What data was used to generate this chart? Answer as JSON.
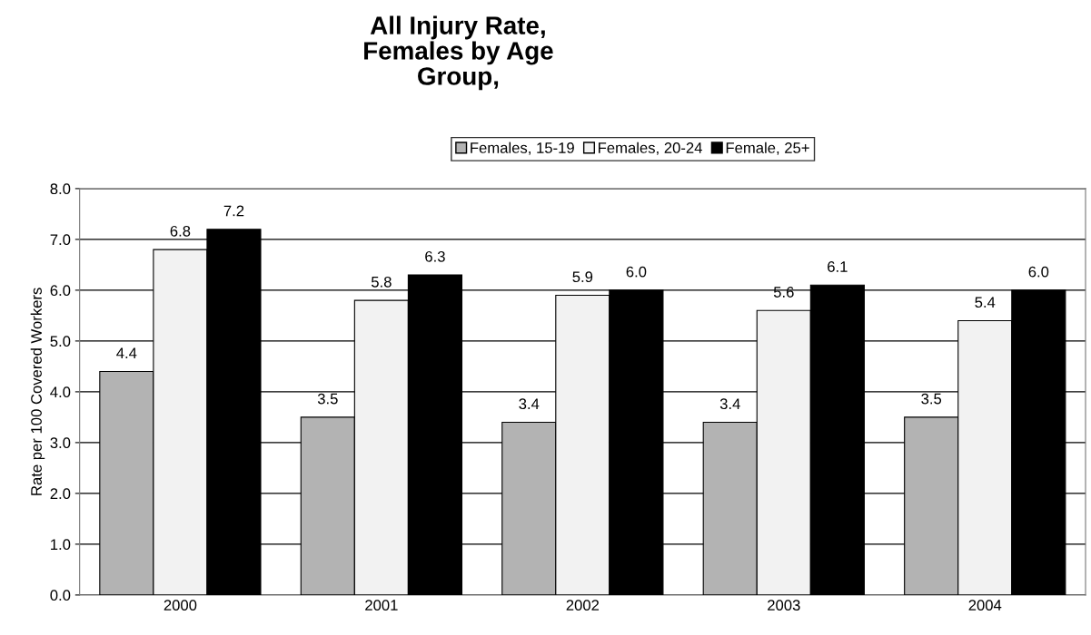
{
  "chart_data": {
    "type": "bar",
    "title": "All Injury Rate,\nFemales by Age\nGroup,",
    "ylabel": "Rate per 100 Covered Workers",
    "categories": [
      "2000",
      "2001",
      "2002",
      "2003",
      "2004"
    ],
    "series": [
      {
        "name": "Females, 15-19",
        "color": "#b3b3b3",
        "values": [
          4.4,
          3.5,
          3.4,
          3.4,
          3.5
        ],
        "value_labels": [
          "4.4",
          "3.5",
          "3.4",
          "3.4",
          "3.5"
        ]
      },
      {
        "name": "Females, 20-24",
        "color": "#f2f2f2",
        "values": [
          6.8,
          5.8,
          5.9,
          5.6,
          5.4
        ],
        "value_labels": [
          "6.8",
          "5.8",
          "5.9",
          "5.6",
          "5.4"
        ]
      },
      {
        "name": "Female, 25+",
        "color": "#000000",
        "values": [
          7.2,
          6.3,
          6.0,
          6.1,
          6.0
        ],
        "value_labels": [
          "7.2",
          "6.3",
          "6.0",
          "6.1",
          "6.0"
        ]
      }
    ],
    "ylim": [
      0,
      8
    ],
    "yticks": [
      {
        "value": 0,
        "label": "0.0"
      },
      {
        "value": 1,
        "label": "1.0"
      },
      {
        "value": 2,
        "label": "2.0"
      },
      {
        "value": 3,
        "label": "3.0"
      },
      {
        "value": 4,
        "label": "4.0"
      },
      {
        "value": 5,
        "label": "5.0"
      },
      {
        "value": 6,
        "label": "6.0"
      },
      {
        "value": 7,
        "label": "7.0"
      },
      {
        "value": 8,
        "label": "8.0"
      }
    ],
    "grid": "y",
    "legend": "top"
  }
}
